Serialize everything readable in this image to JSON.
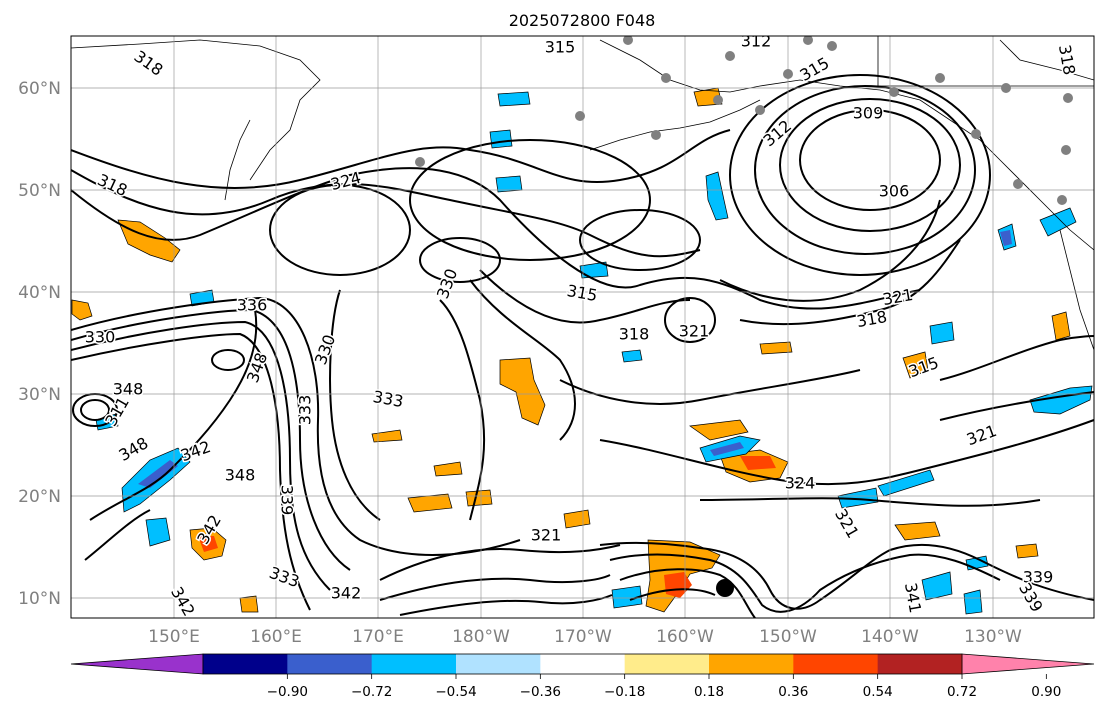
{
  "title": "2025072800 F048",
  "map": {
    "lat_labels": [
      "60°N",
      "50°N",
      "40°N",
      "30°N",
      "20°N",
      "10°N"
    ],
    "lon_labels": [
      "150°E",
      "160°E",
      "170°E",
      "180°W",
      "170°W",
      "160°W",
      "150°W",
      "140°W",
      "130°W"
    ],
    "contour_labels": [
      "318",
      "318",
      "315",
      "312",
      "315",
      "318",
      "309",
      "306",
      "312",
      "324",
      "330",
      "336",
      "315",
      "318",
      "321",
      "321",
      "318",
      "315",
      "330",
      "348",
      "330",
      "348",
      "348",
      "311",
      "342",
      "348",
      "333",
      "333",
      "339",
      "324",
      "321",
      "342",
      "321",
      "321",
      "339",
      "342",
      "342",
      "341",
      "339",
      "333"
    ],
    "fill_color_positive": "#ffa500",
    "fill_color_strong_positive": "#ff4500",
    "fill_color_negative": "#00bfff",
    "fill_color_strong_negative": "#3a5fcd",
    "station_marker_color": "#808080",
    "cyclone_marker_color": "#000000"
  },
  "colorbar": {
    "ticks": [
      "−0.90",
      "−0.72",
      "−0.54",
      "−0.36",
      "−0.18",
      "0.18",
      "0.36",
      "0.54",
      "0.72",
      "0.90"
    ],
    "colors": [
      "#9932cc",
      "#00008b",
      "#3a5fcd",
      "#00bfff",
      "#b0e2ff",
      "#ffffff",
      "#ffec8b",
      "#ffa500",
      "#ff4500",
      "#b22222",
      "#ff82ab"
    ]
  }
}
